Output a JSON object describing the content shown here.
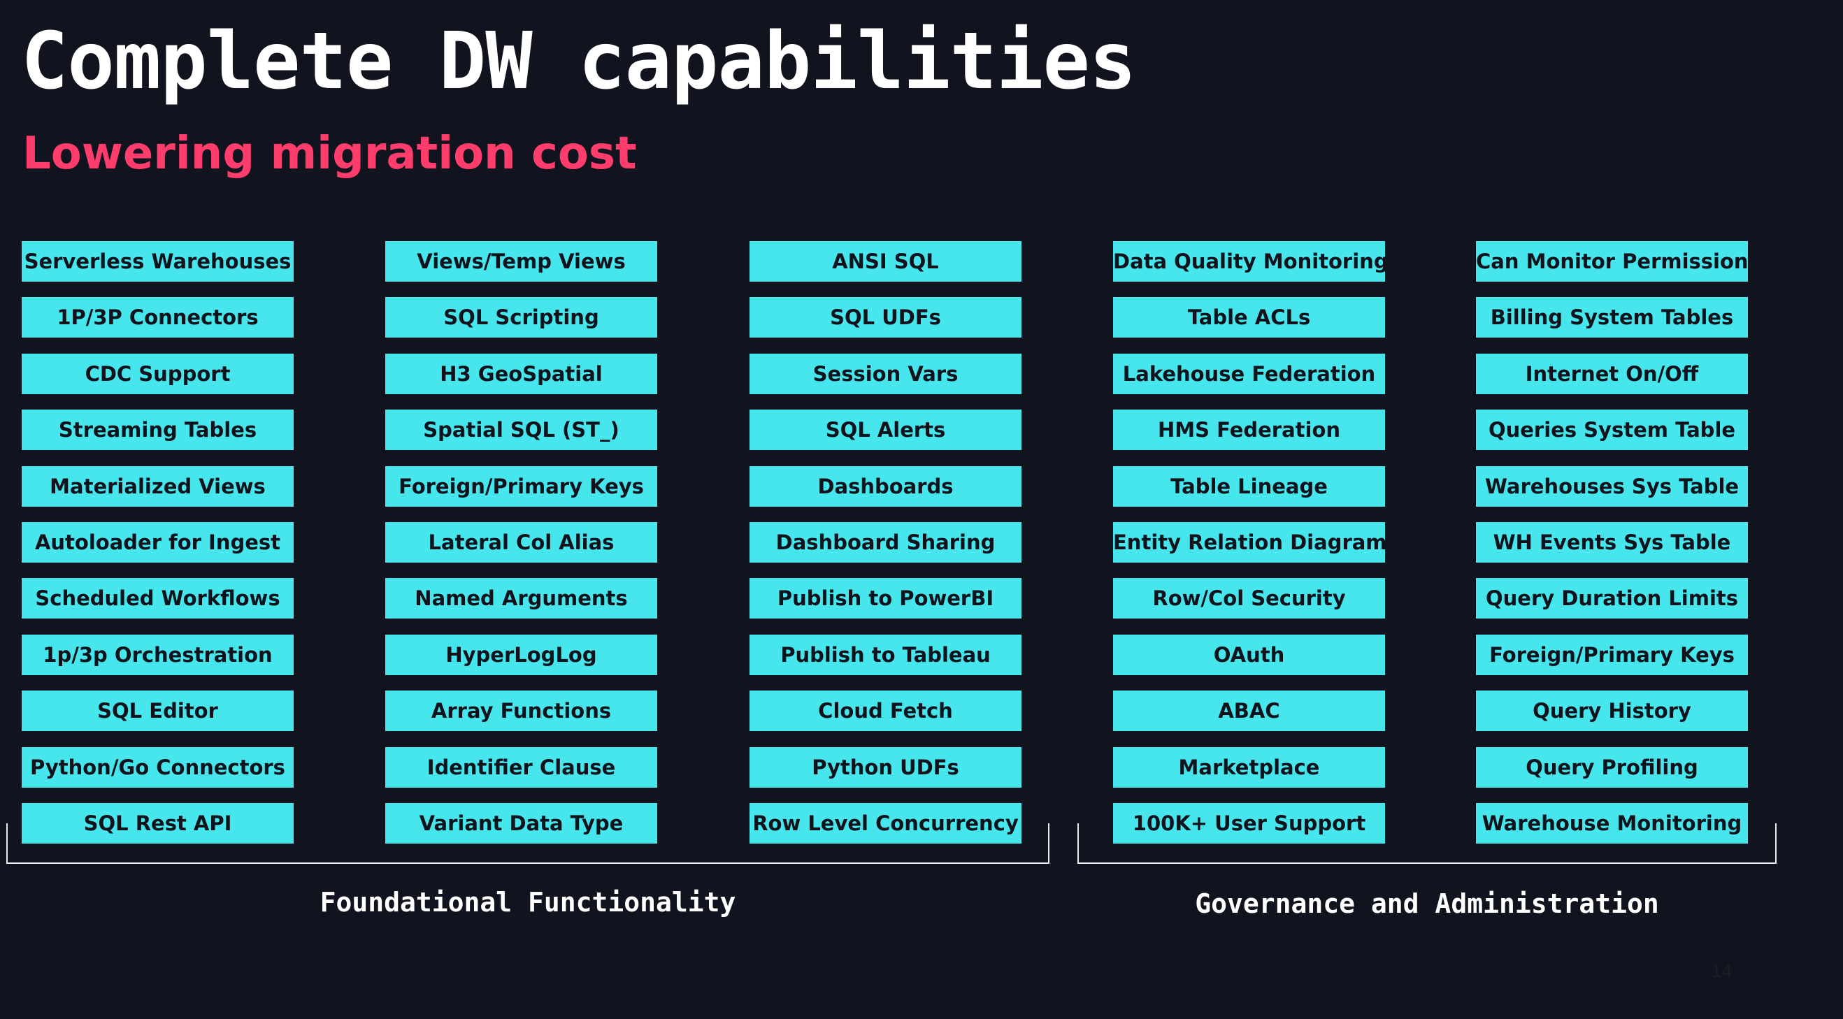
{
  "title": "Complete DW capabilities",
  "subtitle": "Lowering migration cost",
  "columns": [
    {
      "items": [
        "Serverless Warehouses",
        "1P/3P Connectors",
        "CDC Support",
        "Streaming Tables",
        "Materialized Views",
        "Autoloader for Ingest",
        "Scheduled Workflows",
        "1p/3p Orchestration",
        "SQL Editor",
        "Python/Go Connectors",
        "SQL Rest API"
      ]
    },
    {
      "items": [
        "Views/Temp Views",
        "SQL Scripting",
        "H3 GeoSpatial",
        "Spatial SQL (ST_)",
        "Foreign/Primary Keys",
        "Lateral Col Alias",
        "Named Arguments",
        "HyperLogLog",
        "Array Functions",
        "Identifier Clause",
        "Variant Data Type"
      ]
    },
    {
      "items": [
        "ANSI SQL",
        "SQL UDFs",
        "Session Vars",
        "SQL Alerts",
        "Dashboards",
        "Dashboard Sharing",
        "Publish to PowerBI",
        "Publish to Tableau",
        "Cloud Fetch",
        "Python UDFs",
        "Row Level Concurrency"
      ]
    },
    {
      "items": [
        "Data Quality Monitoring",
        "Table ACLs",
        "Lakehouse Federation",
        "HMS Federation",
        "Table Lineage",
        "Entity Relation Diagram",
        "Row/Col Security",
        "OAuth",
        "ABAC",
        "Marketplace",
        "100K+ User Support"
      ]
    },
    {
      "items": [
        "Can Monitor Permissions",
        "Billing System Tables",
        "Internet On/Off",
        "Queries System Table",
        "Warehouses Sys Table",
        "WH Events Sys Table",
        "Query Duration Limits",
        "Foreign/Primary Keys",
        "Query History",
        "Query Profiling",
        "Warehouse Monitoring"
      ]
    }
  ],
  "groups": [
    {
      "label": "Foundational Functionality"
    },
    {
      "label": "Governance and Administration"
    }
  ],
  "page_number": "14",
  "colors": {
    "background": "#11131e",
    "title": "#ffffff",
    "subtitle": "#ff3d6c",
    "tile": "#46e6ec",
    "tile_text": "#10131c",
    "bracket": "#e9ecf2"
  }
}
